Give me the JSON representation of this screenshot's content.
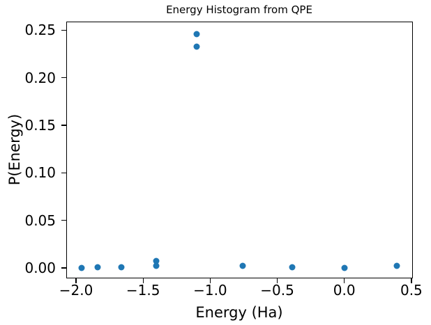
{
  "chart_data": {
    "type": "scatter",
    "title": "Energy Histogram from QPE",
    "xlabel": "Energy (Ha)",
    "ylabel": "P(Energy)",
    "xlim": [
      -2.073,
      0.511
    ],
    "ylim": [
      -0.011,
      0.259
    ],
    "grid": false,
    "legend": null,
    "marker_color": "#1f77b4",
    "spine_color": "#000000",
    "background_color": "#ffffff",
    "xticks": [
      {
        "value": -2.0,
        "label": "−2.0"
      },
      {
        "value": -1.5,
        "label": "−1.5"
      },
      {
        "value": -1.0,
        "label": "−1.0"
      },
      {
        "value": -0.5,
        "label": "−0.5"
      },
      {
        "value": 0.0,
        "label": "0.0"
      },
      {
        "value": 0.5,
        "label": "0.5"
      }
    ],
    "yticks": [
      {
        "value": 0.0,
        "label": "0.00"
      },
      {
        "value": 0.05,
        "label": "0.05"
      },
      {
        "value": 0.1,
        "label": "0.10"
      },
      {
        "value": 0.15,
        "label": "0.15"
      },
      {
        "value": 0.2,
        "label": "0.20"
      },
      {
        "value": 0.25,
        "label": "0.25"
      }
    ],
    "points": [
      {
        "x": -1.96,
        "y": 0.0
      },
      {
        "x": -1.84,
        "y": 0.001
      },
      {
        "x": -1.66,
        "y": 0.001
      },
      {
        "x": -1.4,
        "y": 0.007
      },
      {
        "x": -1.4,
        "y": 0.002
      },
      {
        "x": -1.1,
        "y": 0.246
      },
      {
        "x": -1.1,
        "y": 0.233
      },
      {
        "x": -0.76,
        "y": 0.002
      },
      {
        "x": -0.39,
        "y": 0.001
      },
      {
        "x": 0.0,
        "y": 0.0
      },
      {
        "x": 0.39,
        "y": 0.002
      }
    ]
  }
}
